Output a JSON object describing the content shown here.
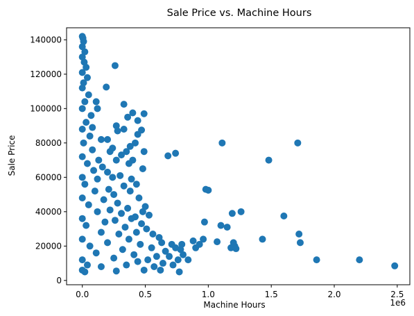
{
  "chart_data": {
    "type": "scatter",
    "title": "Sale Price vs. Machine Hours",
    "xlabel": "Machine Hours",
    "ylabel": "Sale Price",
    "x_offset_label": "1e6",
    "xlim": [
      -0.125,
      2.6
    ],
    "ylim": [
      -2500,
      147000
    ],
    "x_ticks": [
      0.0,
      0.5,
      1.0,
      1.5,
      2.0,
      2.5
    ],
    "x_tick_labels": [
      "0.0",
      "0.5",
      "1.0",
      "1.5",
      "2.0",
      "2.5"
    ],
    "y_ticks": [
      0,
      20000,
      40000,
      60000,
      80000,
      100000,
      120000,
      140000
    ],
    "y_tick_labels": [
      "0",
      "20000",
      "40000",
      "60000",
      "80000",
      "100000",
      "120000",
      "140000"
    ],
    "grid": false,
    "marker_color": "#1f77b4",
    "points": [
      {
        "x": 0.0,
        "y": 142000
      },
      {
        "x": 0.005,
        "y": 141000
      },
      {
        "x": 0.01,
        "y": 139000
      },
      {
        "x": 0.0,
        "y": 136000
      },
      {
        "x": 0.02,
        "y": 133000
      },
      {
        "x": 0.0,
        "y": 130000
      },
      {
        "x": 0.015,
        "y": 127000
      },
      {
        "x": 0.03,
        "y": 124000
      },
      {
        "x": 0.0,
        "y": 121000
      },
      {
        "x": 0.04,
        "y": 118000
      },
      {
        "x": 0.01,
        "y": 115000
      },
      {
        "x": 0.0,
        "y": 112000
      },
      {
        "x": 0.05,
        "y": 108000
      },
      {
        "x": 0.02,
        "y": 104000
      },
      {
        "x": 0.0,
        "y": 100000
      },
      {
        "x": 0.07,
        "y": 96000
      },
      {
        "x": 0.03,
        "y": 92000
      },
      {
        "x": 0.0,
        "y": 88000
      },
      {
        "x": 0.06,
        "y": 84000
      },
      {
        "x": 0.01,
        "y": 80000
      },
      {
        "x": 0.08,
        "y": 76000
      },
      {
        "x": 0.0,
        "y": 72000
      },
      {
        "x": 0.04,
        "y": 68000
      },
      {
        "x": 0.09,
        "y": 64000
      },
      {
        "x": 0.0,
        "y": 60000
      },
      {
        "x": 0.02,
        "y": 56000
      },
      {
        "x": 0.1,
        "y": 52000
      },
      {
        "x": 0.0,
        "y": 48000
      },
      {
        "x": 0.05,
        "y": 44000
      },
      {
        "x": 0.12,
        "y": 40000
      },
      {
        "x": 0.0,
        "y": 36000
      },
      {
        "x": 0.03,
        "y": 32000
      },
      {
        "x": 0.15,
        "y": 28000
      },
      {
        "x": 0.0,
        "y": 24000
      },
      {
        "x": 0.06,
        "y": 20000
      },
      {
        "x": 0.11,
        "y": 16000
      },
      {
        "x": 0.0,
        "y": 12000
      },
      {
        "x": 0.04,
        "y": 9000
      },
      {
        "x": 0.0,
        "y": 6000
      },
      {
        "x": 0.02,
        "y": 5000
      },
      {
        "x": 0.26,
        "y": 125000
      },
      {
        "x": 0.19,
        "y": 112500
      },
      {
        "x": 0.11,
        "y": 104000
      },
      {
        "x": 0.12,
        "y": 100000
      },
      {
        "x": 0.33,
        "y": 102500
      },
      {
        "x": 0.4,
        "y": 97500
      },
      {
        "x": 0.49,
        "y": 97000
      },
      {
        "x": 0.36,
        "y": 95000
      },
      {
        "x": 0.44,
        "y": 93000
      },
      {
        "x": 0.08,
        "y": 89000
      },
      {
        "x": 0.27,
        "y": 90000
      },
      {
        "x": 0.28,
        "y": 87000
      },
      {
        "x": 0.33,
        "y": 88000
      },
      {
        "x": 0.47,
        "y": 87500
      },
      {
        "x": 0.44,
        "y": 85000
      },
      {
        "x": 0.2,
        "y": 82000
      },
      {
        "x": 0.15,
        "y": 82000
      },
      {
        "x": 0.42,
        "y": 80000
      },
      {
        "x": 0.38,
        "y": 78000
      },
      {
        "x": 0.49,
        "y": 75000
      },
      {
        "x": 0.24,
        "y": 77000
      },
      {
        "x": 0.35,
        "y": 75000
      },
      {
        "x": 0.31,
        "y": 73000
      },
      {
        "x": 0.22,
        "y": 75000
      },
      {
        "x": 0.13,
        "y": 70000
      },
      {
        "x": 0.27,
        "y": 70000
      },
      {
        "x": 0.4,
        "y": 70000
      },
      {
        "x": 0.37,
        "y": 68000
      },
      {
        "x": 0.16,
        "y": 66000
      },
      {
        "x": 0.48,
        "y": 65000
      },
      {
        "x": 0.2,
        "y": 63000
      },
      {
        "x": 0.3,
        "y": 61000
      },
      {
        "x": 0.24,
        "y": 60000
      },
      {
        "x": 0.39,
        "y": 59000
      },
      {
        "x": 0.12,
        "y": 59000
      },
      {
        "x": 0.43,
        "y": 56000
      },
      {
        "x": 0.33,
        "y": 55000
      },
      {
        "x": 0.21,
        "y": 53000
      },
      {
        "x": 0.25,
        "y": 50000
      },
      {
        "x": 0.38,
        "y": 52000
      },
      {
        "x": 0.45,
        "y": 48000
      },
      {
        "x": 0.17,
        "y": 47000
      },
      {
        "x": 0.28,
        "y": 45000
      },
      {
        "x": 0.5,
        "y": 43000
      },
      {
        "x": 0.36,
        "y": 42000
      },
      {
        "x": 0.22,
        "y": 41000
      },
      {
        "x": 0.48,
        "y": 40000
      },
      {
        "x": 0.31,
        "y": 39000
      },
      {
        "x": 0.42,
        "y": 37000
      },
      {
        "x": 0.53,
        "y": 38000
      },
      {
        "x": 0.39,
        "y": 36000
      },
      {
        "x": 0.26,
        "y": 35000
      },
      {
        "x": 0.18,
        "y": 34000
      },
      {
        "x": 0.47,
        "y": 33000
      },
      {
        "x": 0.34,
        "y": 31000
      },
      {
        "x": 0.51,
        "y": 30000
      },
      {
        "x": 0.56,
        "y": 27000
      },
      {
        "x": 0.43,
        "y": 28000
      },
      {
        "x": 0.29,
        "y": 27000
      },
      {
        "x": 0.61,
        "y": 25000
      },
      {
        "x": 0.37,
        "y": 24000
      },
      {
        "x": 0.2,
        "y": 22000
      },
      {
        "x": 0.63,
        "y": 22000
      },
      {
        "x": 0.46,
        "y": 21000
      },
      {
        "x": 0.71,
        "y": 21000
      },
      {
        "x": 0.55,
        "y": 19000
      },
      {
        "x": 0.74,
        "y": 19000
      },
      {
        "x": 0.32,
        "y": 18000
      },
      {
        "x": 0.66,
        "y": 17000
      },
      {
        "x": 0.78,
        "y": 18000
      },
      {
        "x": 0.41,
        "y": 15000
      },
      {
        "x": 0.59,
        "y": 14000
      },
      {
        "x": 0.69,
        "y": 14000
      },
      {
        "x": 0.25,
        "y": 13000
      },
      {
        "x": 0.52,
        "y": 12000
      },
      {
        "x": 0.76,
        "y": 12000
      },
      {
        "x": 0.44,
        "y": 11000
      },
      {
        "x": 0.64,
        "y": 10000
      },
      {
        "x": 0.35,
        "y": 9000
      },
      {
        "x": 0.72,
        "y": 9000
      },
      {
        "x": 0.57,
        "y": 8000
      },
      {
        "x": 0.15,
        "y": 8000
      },
      {
        "x": 0.49,
        "y": 6000
      },
      {
        "x": 0.62,
        "y": 6000
      },
      {
        "x": 0.27,
        "y": 5500
      },
      {
        "x": 0.8,
        "y": 15000
      },
      {
        "x": 0.84,
        "y": 12000
      },
      {
        "x": 0.79,
        "y": 21000
      },
      {
        "x": 0.9,
        "y": 19000
      },
      {
        "x": 0.77,
        "y": 5000
      },
      {
        "x": 0.68,
        "y": 72500
      },
      {
        "x": 0.74,
        "y": 74000
      },
      {
        "x": 0.98,
        "y": 53000
      },
      {
        "x": 1.0,
        "y": 52500
      },
      {
        "x": 0.97,
        "y": 34000
      },
      {
        "x": 0.96,
        "y": 24000
      },
      {
        "x": 0.93,
        "y": 21000
      },
      {
        "x": 0.88,
        "y": 23000
      },
      {
        "x": 1.11,
        "y": 80000
      },
      {
        "x": 1.48,
        "y": 70000
      },
      {
        "x": 1.71,
        "y": 80000
      },
      {
        "x": 1.1,
        "y": 32000
      },
      {
        "x": 1.15,
        "y": 31000
      },
      {
        "x": 1.07,
        "y": 22500
      },
      {
        "x": 1.19,
        "y": 39000
      },
      {
        "x": 1.26,
        "y": 40000
      },
      {
        "x": 1.2,
        "y": 22000
      },
      {
        "x": 1.21,
        "y": 20000
      },
      {
        "x": 1.18,
        "y": 19000
      },
      {
        "x": 1.22,
        "y": 18500
      },
      {
        "x": 1.43,
        "y": 24000
      },
      {
        "x": 1.6,
        "y": 37500
      },
      {
        "x": 1.72,
        "y": 27000
      },
      {
        "x": 1.73,
        "y": 22000
      },
      {
        "x": 1.86,
        "y": 12000
      },
      {
        "x": 2.2,
        "y": 12000
      },
      {
        "x": 2.48,
        "y": 8500
      }
    ]
  }
}
